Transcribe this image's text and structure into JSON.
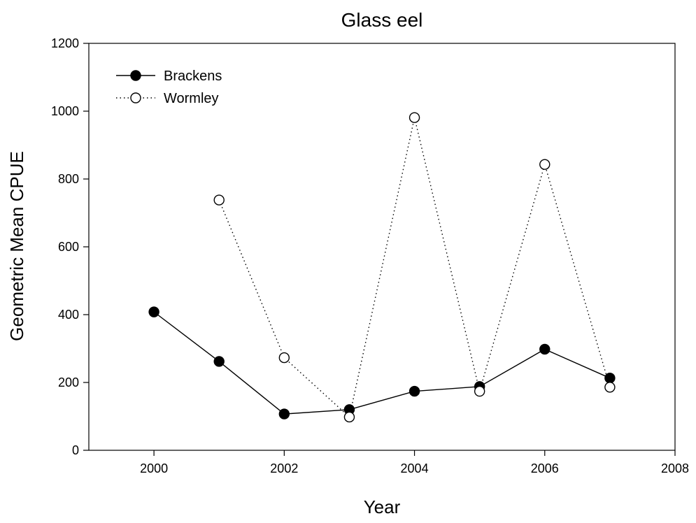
{
  "chart_data": {
    "type": "line",
    "title": "Glass eel",
    "xlabel": "Year",
    "ylabel": "Geometric Mean CPUE",
    "xlim": [
      1999,
      2008
    ],
    "ylim": [
      0,
      1200
    ],
    "x_ticks": [
      2000,
      2002,
      2004,
      2006,
      2008
    ],
    "y_ticks": [
      0,
      200,
      400,
      600,
      800,
      1000,
      1200
    ],
    "grid": false,
    "legend_position": "top-left",
    "series": [
      {
        "name": "Brackens",
        "marker": "filled-circle",
        "line_style": "solid",
        "color": "#000000",
        "x": [
          2000,
          2001,
          2002,
          2003,
          2004,
          2005,
          2006,
          2007
        ],
        "y": [
          408,
          262,
          107,
          120,
          174,
          188,
          298,
          213
        ]
      },
      {
        "name": "Wormley",
        "marker": "open-circle",
        "line_style": "dotted",
        "color": "#000000",
        "x": [
          2001,
          2002,
          2003,
          2004,
          2005,
          2006,
          2007
        ],
        "y": [
          738,
          273,
          98,
          981,
          174,
          843,
          186
        ]
      }
    ]
  }
}
